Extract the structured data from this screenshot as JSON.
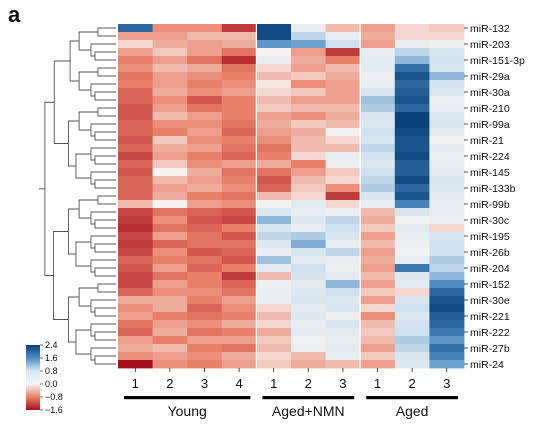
{
  "panel_label": "a",
  "chart_data": {
    "type": "heatmap",
    "title": "",
    "colormap": {
      "low": "#a50f1e",
      "mid": "#f7f4f2",
      "high": "#08427a",
      "domain": [
        -1.6,
        2.4
      ]
    },
    "columns": [
      "1",
      "2",
      "3",
      "4",
      "1",
      "2",
      "3",
      "1",
      "2",
      "3"
    ],
    "groups": [
      {
        "label": "Young",
        "columns": [
          0,
          3
        ]
      },
      {
        "label": "Aged+NMN",
        "columns": [
          4,
          6
        ]
      },
      {
        "label": "Aged",
        "columns": [
          7,
          9
        ]
      }
    ],
    "row_labels": [
      "miR-132",
      "",
      "miR-203",
      "",
      "miR-151-3p",
      "",
      "miR-29a",
      "",
      "miR-30a",
      "",
      "miR-210",
      "",
      "miR-99a",
      "",
      "miR-21",
      "",
      "miR-224",
      "",
      "miR-145",
      "",
      "miR-133b",
      "",
      "miR-99b",
      "",
      "miR-30c",
      "",
      "miR-195",
      "",
      "miR-26b",
      "",
      "miR-204",
      "",
      "miR-152",
      "",
      "miR-30e",
      "",
      "miR-221",
      "",
      "miR-222",
      "",
      "miR-27b",
      "",
      "miR-24"
    ],
    "values": [
      [
        2.0,
        -0.7,
        -0.7,
        -1.3,
        2.3,
        0.3,
        -0.4,
        -0.6,
        -0.2,
        -0.3
      ],
      [
        -0.6,
        -0.6,
        -0.4,
        -0.4,
        2.3,
        0.9,
        0.3,
        -0.5,
        -0.2,
        -0.2
      ],
      [
        -0.2,
        -0.5,
        -0.6,
        -0.5,
        1.5,
        1.4,
        0.8,
        -0.6,
        0.3,
        0.2
      ],
      [
        -0.6,
        -0.3,
        -0.6,
        -0.9,
        0.0,
        -0.6,
        -1.3,
        0.3,
        0.9,
        0.6
      ],
      [
        -0.8,
        -0.6,
        -0.9,
        -1.4,
        0.3,
        -0.5,
        -0.8,
        0.4,
        1.2,
        0.7
      ],
      [
        -0.7,
        -0.4,
        -0.5,
        -0.9,
        -0.2,
        -0.6,
        -0.4,
        0.4,
        1.9,
        0.6
      ],
      [
        -0.9,
        -0.6,
        -0.7,
        -0.8,
        -0.4,
        -0.3,
        -0.5,
        0.2,
        2.2,
        1.2
      ],
      [
        -0.8,
        -0.6,
        -0.8,
        -0.7,
        -0.1,
        -0.7,
        -0.6,
        0.3,
        2.0,
        0.7
      ],
      [
        -1.0,
        -0.5,
        -0.7,
        -0.6,
        -0.2,
        -0.3,
        -0.6,
        0.6,
        2.1,
        0.5
      ],
      [
        -1.0,
        -0.7,
        -1.1,
        -0.8,
        -0.4,
        -0.6,
        -0.6,
        1.1,
        2.2,
        0.2
      ],
      [
        -1.1,
        -0.6,
        -0.9,
        -0.8,
        -0.3,
        -0.4,
        -0.4,
        1.0,
        2.0,
        0.3
      ],
      [
        -1.1,
        -0.4,
        -0.6,
        -0.8,
        -0.6,
        -0.7,
        -0.5,
        0.6,
        2.4,
        0.5
      ],
      [
        -1.0,
        -0.7,
        -0.7,
        -0.9,
        -0.5,
        -0.3,
        -0.4,
        0.5,
        2.4,
        0.6
      ],
      [
        -1.0,
        -0.8,
        -0.6,
        -1.0,
        -0.6,
        -0.5,
        0.1,
        0.8,
        2.3,
        0.4
      ],
      [
        -1.1,
        -0.3,
        -0.7,
        -0.8,
        -0.7,
        -0.4,
        -0.2,
        0.6,
        2.2,
        0.1
      ],
      [
        -1.0,
        -0.5,
        -0.6,
        -0.9,
        -0.9,
        -0.4,
        -0.4,
        0.9,
        2.2,
        0.4
      ],
      [
        -1.2,
        -0.6,
        -0.8,
        -1.0,
        -0.8,
        -0.2,
        0.3,
        0.7,
        2.3,
        0.2
      ],
      [
        -1.0,
        -0.3,
        -0.7,
        -0.6,
        -0.5,
        -0.8,
        0.2,
        0.5,
        2.1,
        0.3
      ],
      [
        -1.1,
        0.0,
        -0.5,
        -0.9,
        -0.9,
        -0.6,
        -0.3,
        0.8,
        2.1,
        0.4
      ],
      [
        -1.0,
        -0.4,
        -0.6,
        -0.8,
        -1.1,
        -0.4,
        -0.2,
        0.9,
        2.3,
        0.6
      ],
      [
        -1.0,
        -0.6,
        -0.5,
        -0.7,
        -1.0,
        -0.3,
        -0.7,
        1.0,
        2.0,
        0.5
      ],
      [
        -1.0,
        -0.5,
        -0.8,
        -0.9,
        -0.4,
        -0.2,
        -1.3,
        0.6,
        2.2,
        0.4
      ],
      [
        -0.4,
        0.0,
        -0.6,
        -0.7,
        0.1,
        0.4,
        -0.2,
        0.3,
        1.7,
        0.3
      ],
      [
        -1.2,
        -0.9,
        -1.0,
        -1.1,
        0.5,
        0.3,
        0.2,
        -0.4,
        0.6,
        0.3
      ],
      [
        -1.3,
        -0.7,
        -1.1,
        -1.2,
        1.2,
        0.5,
        0.9,
        -0.5,
        0.1,
        0.2
      ],
      [
        -1.4,
        -0.9,
        -1.0,
        -0.8,
        0.6,
        0.3,
        0.8,
        -0.3,
        0.4,
        -0.2
      ],
      [
        -1.2,
        -0.6,
        -0.9,
        -1.1,
        0.9,
        1.0,
        0.6,
        -0.6,
        0.3,
        0.6
      ],
      [
        -1.3,
        -1.0,
        -0.9,
        -0.9,
        0.5,
        1.3,
        0.3,
        -0.4,
        0.2,
        0.8
      ],
      [
        -1.2,
        -0.7,
        -1.1,
        -1.0,
        0.3,
        0.6,
        0.9,
        -0.6,
        0.1,
        0.8
      ],
      [
        -1.0,
        -0.8,
        -0.9,
        -1.1,
        1.1,
        0.4,
        0.3,
        -0.5,
        0.3,
        1.0
      ],
      [
        -1.1,
        -0.6,
        -1.0,
        -0.8,
        0.4,
        0.8,
        0.2,
        -0.6,
        1.8,
        0.9
      ],
      [
        -1.2,
        -0.9,
        -0.8,
        -1.3,
        -0.4,
        0.7,
        0.4,
        -0.4,
        0.5,
        1.2
      ],
      [
        -1.2,
        -0.6,
        -0.8,
        -1.0,
        0.2,
        0.4,
        1.2,
        -0.6,
        0.4,
        1.6
      ],
      [
        -1.0,
        -0.7,
        -0.7,
        -0.9,
        0.3,
        0.5,
        0.8,
        -0.3,
        -0.2,
        2.0
      ],
      [
        -0.5,
        -0.5,
        -0.8,
        -0.6,
        0.3,
        0.6,
        0.5,
        -0.6,
        0.6,
        2.2
      ],
      [
        -0.7,
        -0.5,
        -1.0,
        -0.7,
        -0.2,
        0.4,
        0.6,
        -0.2,
        0.8,
        2.3
      ],
      [
        -0.6,
        -0.8,
        -0.9,
        -0.8,
        -0.4,
        0.5,
        0.2,
        -0.7,
        0.5,
        2.1
      ],
      [
        -0.9,
        -0.6,
        -0.7,
        -0.5,
        -0.2,
        0.3,
        0.6,
        -0.4,
        0.7,
        2.0
      ],
      [
        -1.0,
        -0.5,
        -0.9,
        -0.8,
        -0.5,
        0.4,
        0.4,
        -0.3,
        0.8,
        1.8
      ],
      [
        -0.6,
        -0.8,
        -0.6,
        -0.6,
        -0.3,
        0.1,
        0.3,
        -0.4,
        1.0,
        1.5
      ],
      [
        -0.5,
        -0.4,
        -0.8,
        -0.9,
        -0.4,
        0.2,
        0.4,
        -0.6,
        0.9,
        1.9
      ],
      [
        -0.7,
        -0.6,
        -0.7,
        -0.5,
        -0.2,
        -0.4,
        0.3,
        -0.3,
        0.6,
        1.7
      ],
      [
        -1.6,
        -0.7,
        -0.8,
        -0.6,
        -0.3,
        -0.5,
        -0.4,
        -0.6,
        0.5,
        1.4
      ]
    ],
    "legend": {
      "ticks": [
        "2.4",
        "1.6",
        "0.8",
        "0.0",
        "−0.8",
        "−1.6"
      ],
      "tick_values": [
        2.4,
        1.6,
        0.8,
        0.0,
        -0.8,
        -1.6
      ],
      "placement": "bottom-left"
    }
  }
}
